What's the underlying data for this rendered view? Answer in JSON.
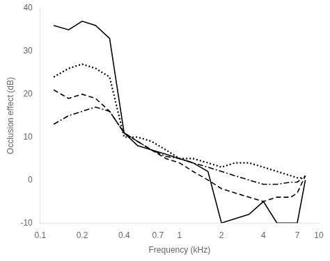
{
  "chart_data": {
    "type": "line",
    "xlabel": "Frequency (kHz)",
    "ylabel": "Occlusion effect (dB)",
    "log": "x",
    "grid": false,
    "xlim": [
      0.1,
      10
    ],
    "ylim": [
      -10,
      40
    ],
    "xticks": [
      0.1,
      0.2,
      0.4,
      0.7,
      1,
      2,
      4,
      7,
      10
    ],
    "yticks": [
      -10,
      0,
      10,
      20,
      30,
      40
    ],
    "series": [
      {
        "line_style": "solid",
        "color": "#000000",
        "x": [
          0.125,
          0.16,
          0.2,
          0.25,
          0.315,
          0.4,
          0.5,
          0.63,
          0.8,
          1.0,
          1.25,
          1.6,
          2.0,
          3.15,
          4.0,
          5.0,
          6.3,
          7.0,
          8.0
        ],
        "values": [
          36,
          35,
          37,
          36,
          33,
          11,
          8,
          7,
          6,
          5,
          4,
          2,
          -10,
          -8,
          -5,
          -10,
          -10,
          -10,
          0
        ]
      },
      {
        "line_style": "dotted",
        "color": "#000000",
        "x": [
          0.125,
          0.16,
          0.2,
          0.25,
          0.315,
          0.4,
          0.5,
          0.63,
          0.8,
          1.0,
          1.25,
          1.6,
          2.0,
          2.5,
          3.15,
          4.0,
          5.0,
          6.3,
          7.0,
          8.0
        ],
        "values": [
          24,
          26,
          27,
          26,
          24,
          10,
          10,
          9,
          7,
          5,
          5,
          4,
          3,
          4,
          4,
          3,
          2,
          1,
          0.5,
          0.5
        ]
      },
      {
        "line_style": "dashed",
        "color": "#000000",
        "x": [
          0.125,
          0.16,
          0.2,
          0.25,
          0.315,
          0.4,
          0.5,
          0.63,
          0.8,
          1.0,
          1.25,
          1.6,
          2.0,
          2.5,
          3.15,
          4.0,
          5.0,
          6.3,
          7.0,
          8.0
        ],
        "values": [
          21,
          19,
          20,
          19,
          16,
          11,
          9,
          7,
          5,
          4,
          2,
          0,
          -2,
          -3,
          -4,
          -5,
          -4,
          -4,
          -3,
          1
        ]
      },
      {
        "line_style": "dashdot",
        "color": "#000000",
        "x": [
          0.125,
          0.16,
          0.2,
          0.25,
          0.315,
          0.4,
          0.5,
          0.63,
          0.8,
          1.0,
          1.25,
          1.6,
          2.0,
          2.5,
          3.15,
          4.0,
          5.0,
          6.3,
          7.0,
          8.0
        ],
        "values": [
          13,
          15,
          16,
          17,
          16,
          11,
          9,
          7,
          5.5,
          5,
          4,
          3,
          2,
          1,
          0,
          -1,
          -1,
          -0.5,
          -0.5,
          1
        ]
      }
    ]
  }
}
